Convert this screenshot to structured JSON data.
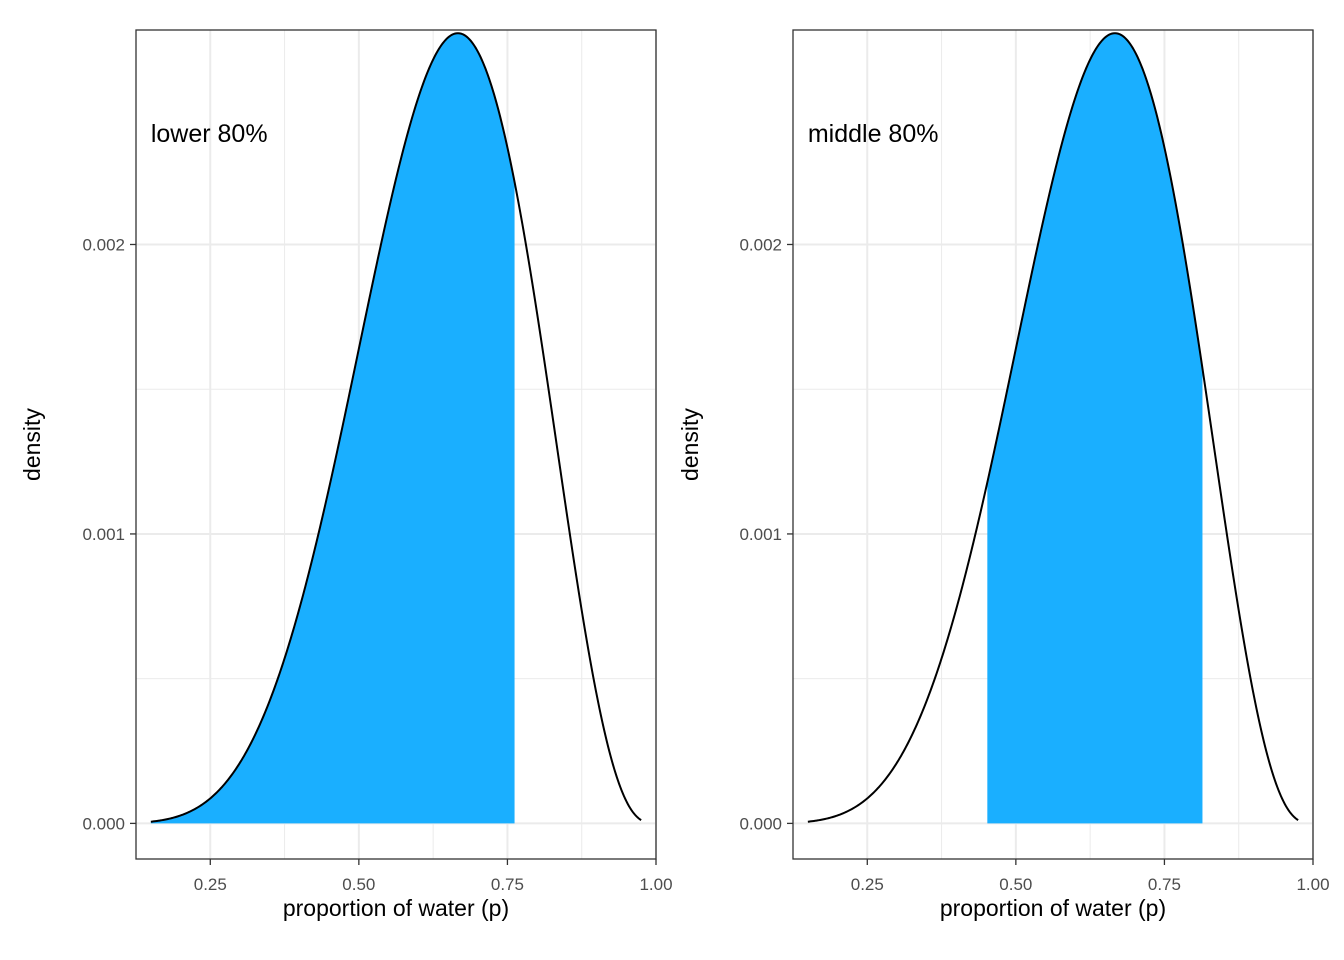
{
  "chart_data": [
    {
      "type": "area",
      "annotation": "lower 80%",
      "xlabel": "proportion of water (p)",
      "ylabel": "density",
      "xlim": [
        0.125,
        1.0
      ],
      "ylim": [
        -0.000123,
        0.002741
      ],
      "x_ticks": [
        0.25,
        0.5,
        0.75,
        1.0
      ],
      "x_tick_labels": [
        "0.25",
        "0.50",
        "0.75",
        "1.00"
      ],
      "y_ticks": [
        0.0,
        0.001,
        0.002
      ],
      "y_tick_labels": [
        "0.000",
        "0.001",
        "0.002"
      ],
      "curve": {
        "distribution": "beta",
        "alpha": 7,
        "beta": 4,
        "x_from": 0.15,
        "x_to": 0.975,
        "peak_density": 0.00273
      },
      "shaded_interval": [
        0.15,
        0.762
      ],
      "fill_color": "#1AAFFF",
      "grid": true
    },
    {
      "type": "area",
      "annotation": "middle 80%",
      "xlabel": "proportion of water (p)",
      "ylabel": "density",
      "xlim": [
        0.125,
        1.0
      ],
      "ylim": [
        -0.000123,
        0.002741
      ],
      "x_ticks": [
        0.25,
        0.5,
        0.75,
        1.0
      ],
      "x_tick_labels": [
        "0.25",
        "0.50",
        "0.75",
        "1.00"
      ],
      "y_ticks": [
        0.0,
        0.001,
        0.002
      ],
      "y_tick_labels": [
        "0.000",
        "0.001",
        "0.002"
      ],
      "curve": {
        "distribution": "beta",
        "alpha": 7,
        "beta": 4,
        "x_from": 0.15,
        "x_to": 0.975,
        "peak_density": 0.00273
      },
      "shaded_interval": [
        0.452,
        0.814
      ],
      "fill_color": "#1AAFFF",
      "grid": true
    }
  ]
}
